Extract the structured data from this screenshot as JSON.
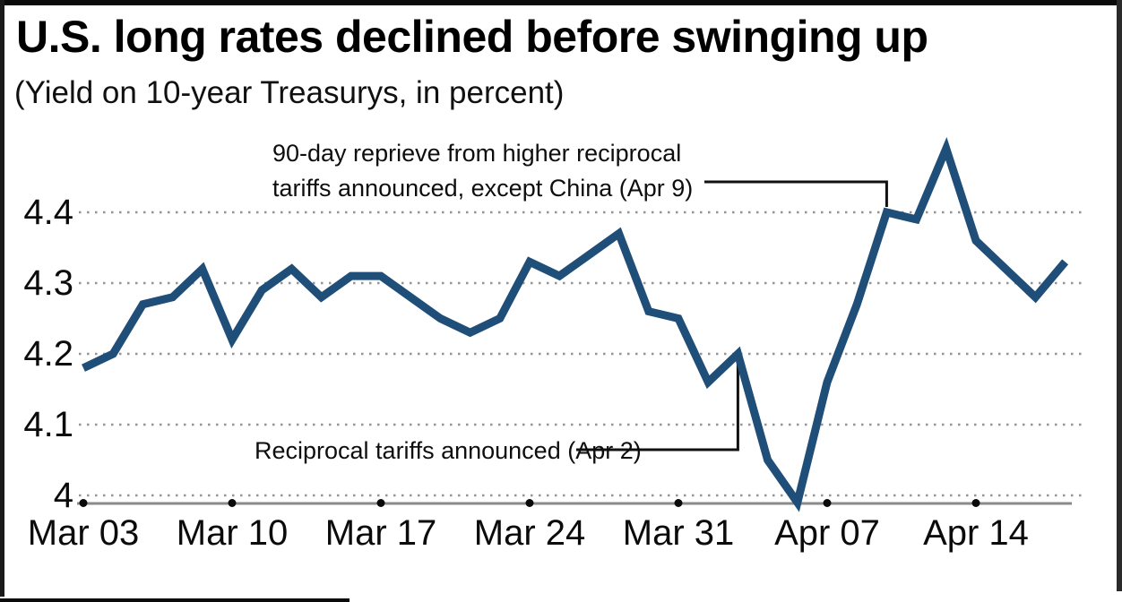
{
  "header": {
    "title": "U.S. long rates declined before swinging up",
    "subtitle": "(Yield on 10-year Treasurys, in percent)"
  },
  "chart_data": {
    "type": "line",
    "title": "U.S. long rates declined before swinging up",
    "subtitle": "(Yield on 10-year Treasurys, in percent)",
    "series_name": "Yield on 10-year Treasurys (percent)",
    "x": [
      "Mar 03",
      "Mar 04",
      "Mar 05",
      "Mar 06",
      "Mar 07",
      "Mar 10",
      "Mar 11",
      "Mar 12",
      "Mar 13",
      "Mar 14",
      "Mar 17",
      "Mar 18",
      "Mar 19",
      "Mar 20",
      "Mar 21",
      "Mar 24",
      "Mar 25",
      "Mar 26",
      "Mar 27",
      "Mar 28",
      "Mar 31",
      "Apr 01",
      "Apr 02",
      "Apr 03",
      "Apr 04",
      "Apr 07",
      "Apr 08",
      "Apr 09",
      "Apr 10",
      "Apr 11",
      "Apr 14",
      "Apr 15",
      "Apr 16",
      "Apr 17"
    ],
    "values": [
      4.18,
      4.2,
      4.27,
      4.28,
      4.32,
      4.22,
      4.29,
      4.32,
      4.28,
      4.31,
      4.31,
      4.28,
      4.25,
      4.23,
      4.25,
      4.33,
      4.31,
      4.34,
      4.37,
      4.26,
      4.25,
      4.16,
      4.2,
      4.05,
      3.99,
      4.16,
      4.27,
      4.4,
      4.39,
      4.49,
      4.36,
      4.32,
      4.28,
      4.33
    ],
    "x_tick_labels": [
      "Mar 03",
      "Mar 10",
      "Mar 17",
      "Mar 24",
      "Mar 31",
      "Apr 07",
      "Apr 14"
    ],
    "y_ticks": [
      {
        "label": "4.4",
        "value": 4.4
      },
      {
        "label": "4.3",
        "value": 4.3
      },
      {
        "label": "4.2",
        "value": 4.2
      },
      {
        "label": "4.1",
        "value": 4.1
      },
      {
        "label": "4",
        "value": 4.0
      }
    ],
    "ylim": [
      3.97,
      4.53
    ],
    "xlabel": "",
    "ylabel": "",
    "grid": "horizontal-dotted",
    "legend": "none",
    "line_color": "#1f4e79",
    "grid_color": "#949494",
    "axis_color": "#8a8a8a",
    "tick_dot_color": "#0a0a0a",
    "annotation_line_color": "#111111",
    "annotations": [
      {
        "id": "apr9",
        "text_line1": "90-day reprieve from higher reciprocal",
        "text_line2": "tariffs announced, except China (Apr 9)",
        "target_date": "Apr 09",
        "target_value": 4.4
      },
      {
        "id": "apr2",
        "text_line1": "Reciprocal tariffs announced (Apr 2)",
        "target_date": "Apr 02",
        "target_value": 4.2
      }
    ]
  }
}
